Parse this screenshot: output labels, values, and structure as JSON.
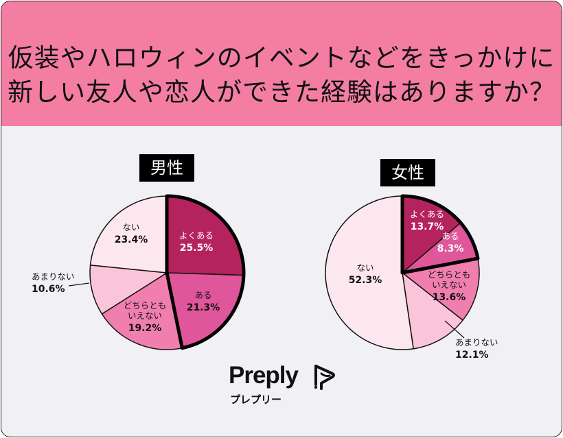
{
  "title": {
    "line1": "仮装やハロウィンのイベントなどをきっかけに",
    "line2": "新しい友人や恋人ができた経験はありますか？"
  },
  "brand": {
    "name": "Preply",
    "subtitle": "プレプリー"
  },
  "colors": {
    "header_bg": "#f47ea3",
    "background": "#f1f0f5",
    "yokuaru": "#b5235e",
    "aru": "#e0569a",
    "dochira": "#f07fb0",
    "amarinai": "#fbc5d9",
    "nai": "#fde7ef"
  },
  "chart_data": [
    {
      "type": "pie",
      "title": "男性",
      "start_angle_deg": 0,
      "direction": "clockwise",
      "categories": [
        "よくある",
        "ある",
        "どちらとも いえない",
        "あまりない",
        "ない"
      ],
      "values": [
        25.5,
        21.3,
        19.2,
        10.6,
        23.4
      ],
      "value_labels": [
        "25.5%",
        "21.3%",
        "19.2%",
        "10.6%",
        "23.4%"
      ],
      "highlighted": [
        "よくある",
        "ある"
      ]
    },
    {
      "type": "pie",
      "title": "女性",
      "start_angle_deg": 0,
      "direction": "clockwise",
      "categories": [
        "よくある",
        "ある",
        "どちらとも いえない",
        "あまりない",
        "ない"
      ],
      "values": [
        13.7,
        8.3,
        13.6,
        12.1,
        52.3
      ],
      "value_labels": [
        "13.7%",
        "8.3%",
        "13.6%",
        "12.1%",
        "52.3%"
      ],
      "highlighted": [
        "よくある",
        "ある"
      ]
    }
  ]
}
